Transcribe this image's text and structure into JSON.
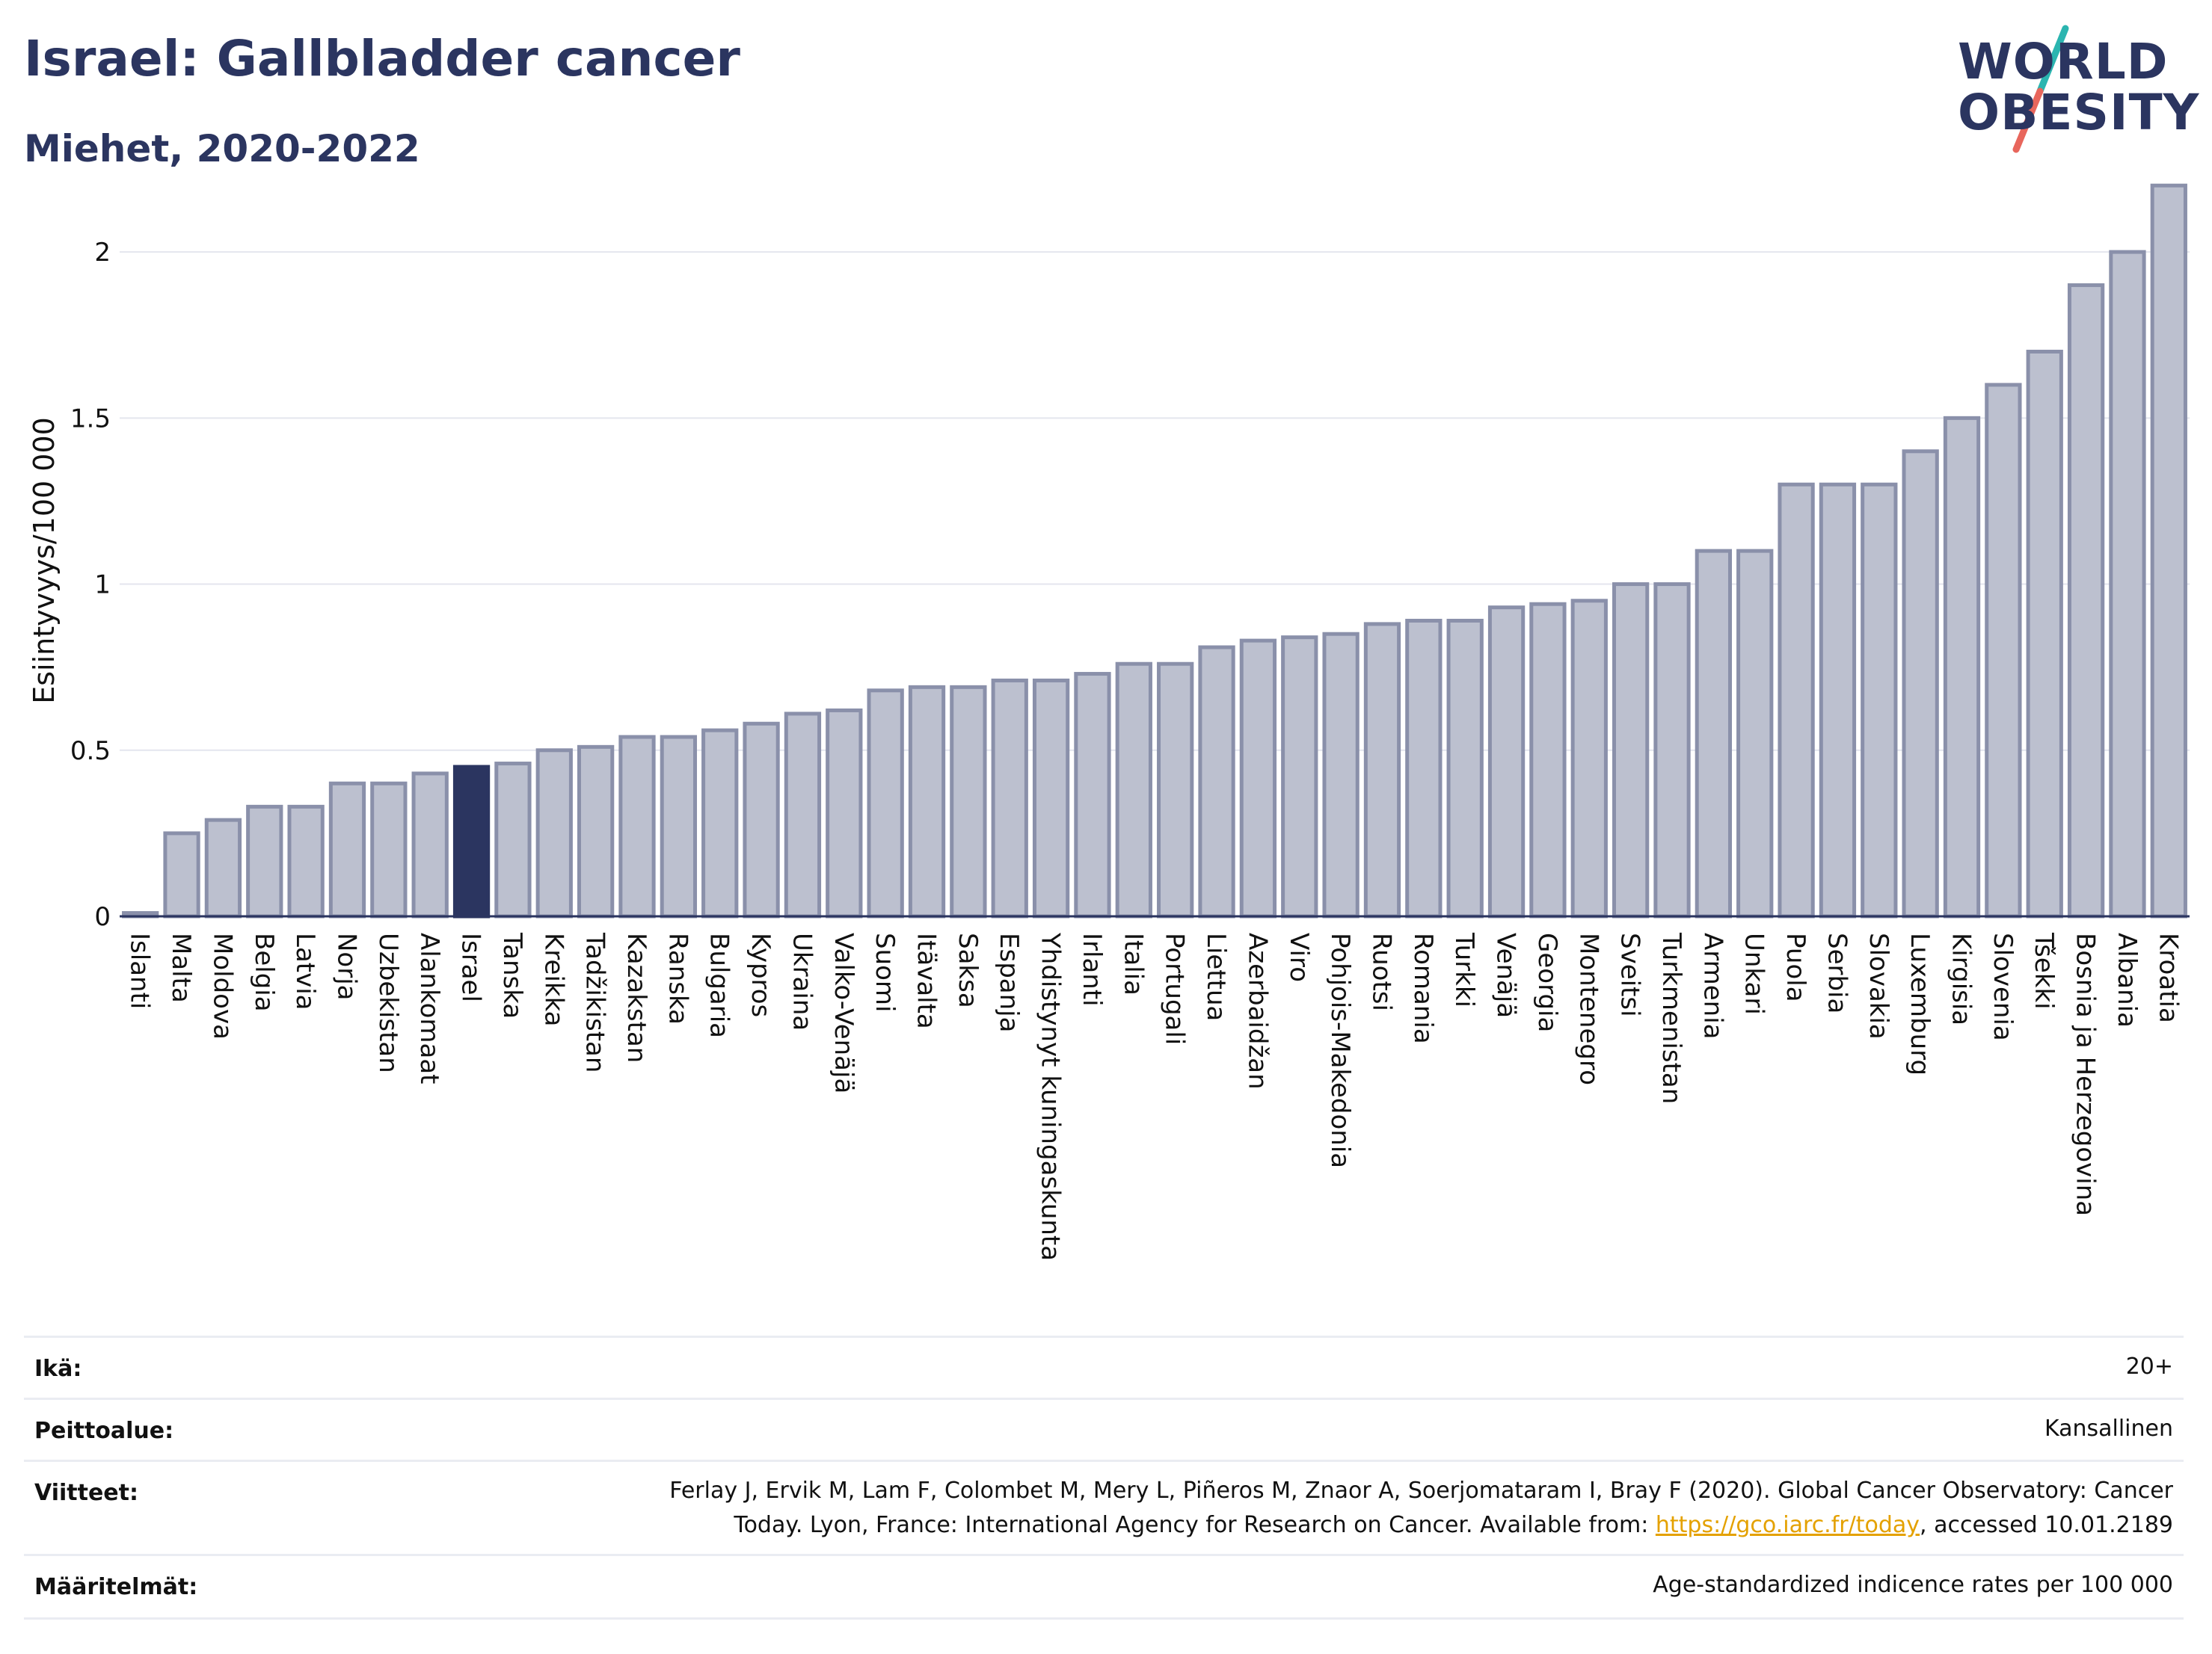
{
  "header": {
    "title": "Israel: Gallbladder cancer",
    "subtitle": "Miehet, 2020-2022"
  },
  "logo": {
    "line1": "WORLD",
    "line2": "OBESITY",
    "colors": {
      "text": "#2b3560",
      "slash_teal": "#2bb5b0",
      "slash_red": "#e8665c"
    }
  },
  "colors": {
    "bar_fill": "#bcc0cf",
    "bar_stroke": "#8a90aa",
    "highlight": "#2b3560",
    "grid": "#e4e6ee",
    "axis": "#2b3560"
  },
  "chart_data": {
    "type": "bar",
    "title": "",
    "xlabel": "",
    "ylabel": "Esiintyvyys/100 000",
    "ylim": [
      0,
      2.25
    ],
    "yticks": [
      0,
      0.5,
      1,
      1.5,
      2
    ],
    "ytick_labels": [
      "0",
      "0.5",
      "1",
      "1.5",
      "2"
    ],
    "grid": true,
    "highlight": "Israel",
    "categories": [
      "Islanti",
      "Malta",
      "Moldova",
      "Belgia",
      "Latvia",
      "Norja",
      "Uzbekistan",
      "Alankomaat",
      "Israel",
      "Tanska",
      "Kreikka",
      "Tadžikistan",
      "Kazakstan",
      "Ranska",
      "Bulgaria",
      "Kypros",
      "Ukraina",
      "Valko-Venäjä",
      "Suomi",
      "Itävalta",
      "Saksa",
      "Espanja",
      "Yhdistynyt kuningaskunta",
      "Irlanti",
      "Italia",
      "Portugali",
      "Liettua",
      "Azerbaidžan",
      "Viro",
      "Pohjois-Makedonia",
      "Ruotsi",
      "Romania",
      "Turkki",
      "Venäjä",
      "Georgia",
      "Montenegro",
      "Sveitsi",
      "Turkmenistan",
      "Armenia",
      "Unkari",
      "Puola",
      "Serbia",
      "Slovakia",
      "Luxemburg",
      "Kirgisia",
      "Slovenia",
      "Tšekki",
      "Bosnia ja Herzegovina",
      "Albania",
      "Kroatia"
    ],
    "values": [
      0.01,
      0.25,
      0.29,
      0.33,
      0.33,
      0.4,
      0.4,
      0.43,
      0.45,
      0.46,
      0.5,
      0.51,
      0.54,
      0.54,
      0.56,
      0.58,
      0.61,
      0.62,
      0.68,
      0.69,
      0.69,
      0.71,
      0.71,
      0.73,
      0.76,
      0.76,
      0.81,
      0.83,
      0.84,
      0.85,
      0.88,
      0.89,
      0.89,
      0.93,
      0.94,
      0.95,
      1.0,
      1.0,
      1.1,
      1.1,
      1.3,
      1.3,
      1.3,
      1.4,
      1.5,
      1.6,
      1.7,
      1.9,
      2.0,
      2.2
    ]
  },
  "info": {
    "age_label": "Ikä:",
    "age_value": "20+",
    "coverage_label": "Peittoalue:",
    "coverage_value": "Kansallinen",
    "refs_label": "Viitteet:",
    "refs_line1": "Ferlay J, Ervik M, Lam F, Colombet M, Mery L, Piñeros M, Znaor A, Soerjomataram I, Bray F (2020). Global Cancer Observatory: Cancer",
    "refs_line2_prefix": "Today. Lyon, France: International Agency for Research on Cancer. Available from: ",
    "refs_link": "https://gco.iarc.fr/today",
    "refs_line2_suffix": ", accessed 10.01.2189",
    "definitions_label": "Määritelmät:",
    "definitions_value": "Age-standardized indicence rates per 100 000"
  }
}
